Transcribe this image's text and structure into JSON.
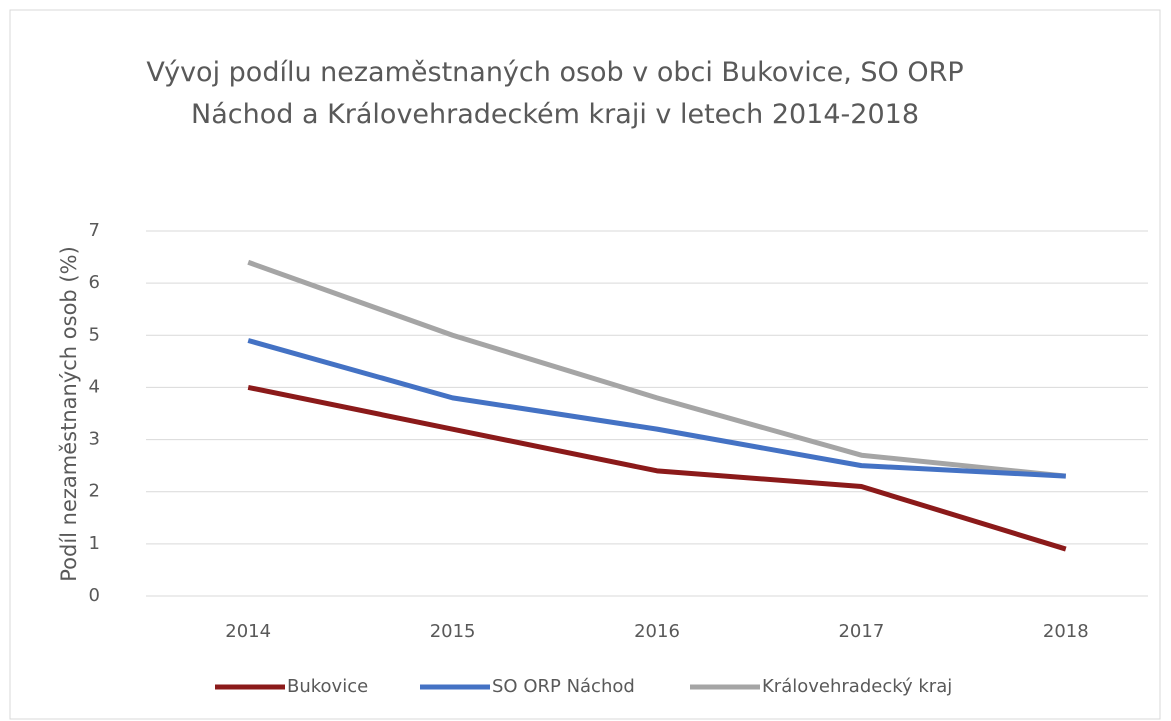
{
  "chart_data": {
    "type": "line",
    "title": "Vývoj podílu nezaměstnaných osob v obci Bukovice, SO ORP Náchod a Královehradeckém kraji v letech 2014-2018",
    "y_label": "Podíl nezaměstnaných osob (%)",
    "categories": [
      "2014",
      "2015",
      "2016",
      "2017",
      "2018"
    ],
    "series": [
      {
        "name": "Bukovice",
        "color": "#8b1a1a",
        "values": [
          4.0,
          3.2,
          2.4,
          2.1,
          0.9
        ]
      },
      {
        "name": "SO ORP Náchod",
        "color": "#4472c4",
        "values": [
          4.9,
          3.8,
          3.2,
          2.5,
          2.3
        ]
      },
      {
        "name": "Královehradecký kraj",
        "color": "#a5a5a5",
        "values": [
          6.4,
          5.0,
          3.8,
          2.7,
          2.3
        ]
      }
    ],
    "ylim": [
      0,
      7
    ],
    "yticks": [
      0,
      1,
      2,
      3,
      4,
      5,
      6,
      7
    ],
    "grid": true,
    "legend": "bottom"
  }
}
